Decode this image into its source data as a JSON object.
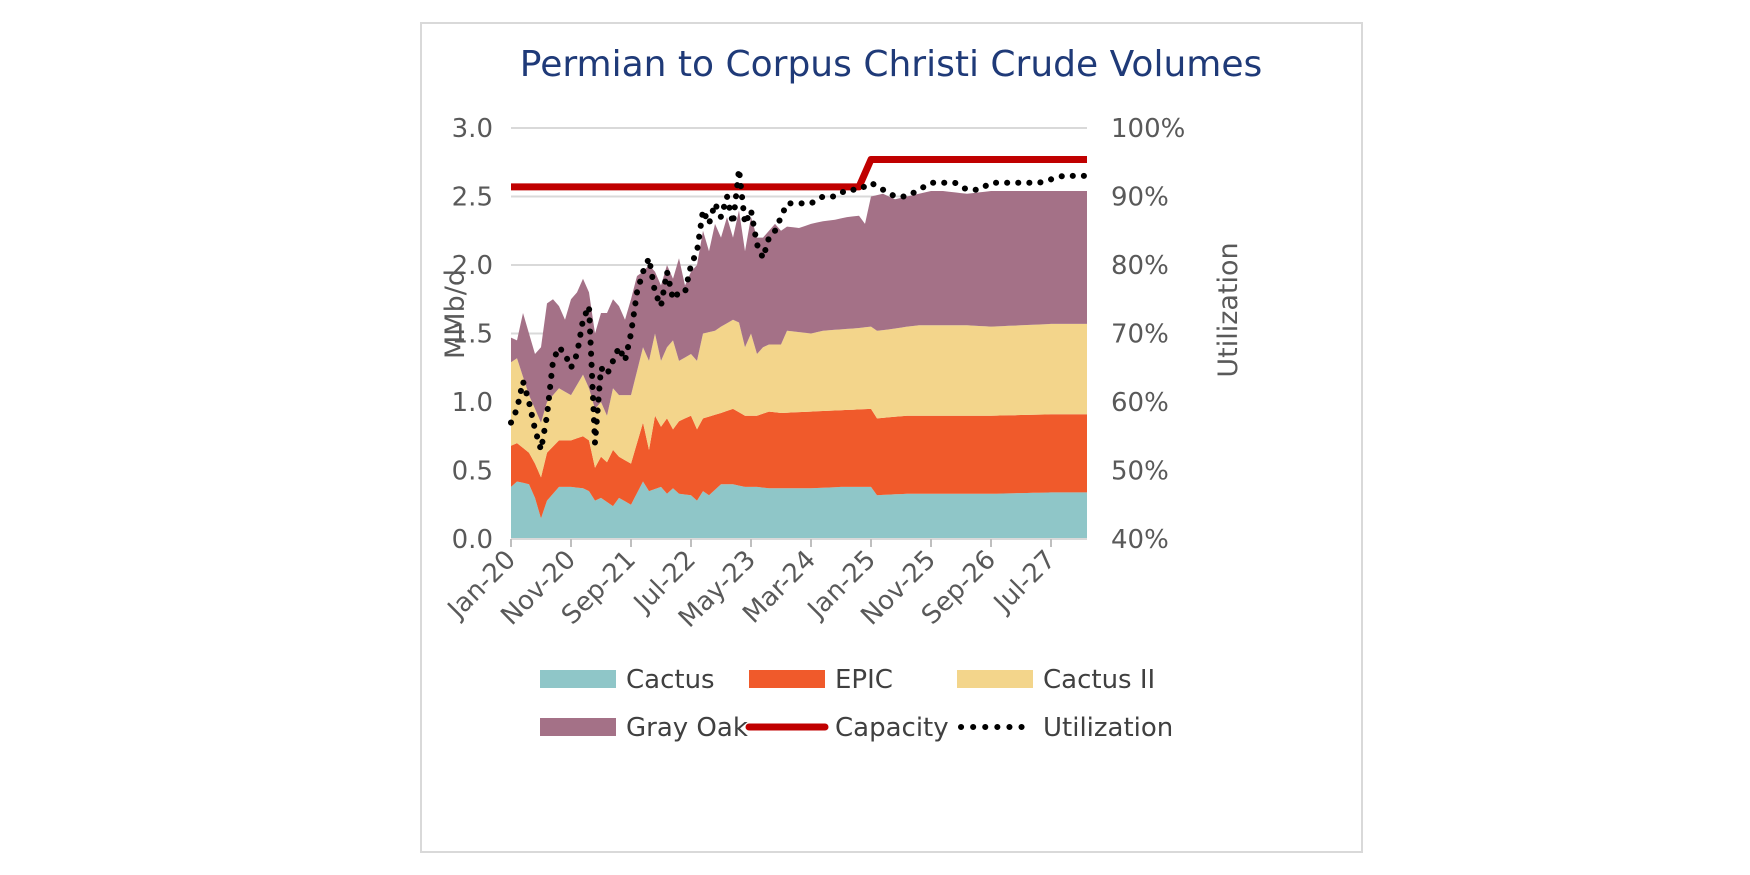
{
  "chart_data": {
    "type": "area",
    "title": "Permian to Corpus Christi Crude Volumes",
    "ylabel": "MMb/d",
    "y2label": "Utilization",
    "ylim": [
      0,
      3.0
    ],
    "y2lim": [
      40,
      100
    ],
    "yticks": [
      "0.0",
      "0.5",
      "1.0",
      "1.5",
      "2.0",
      "2.5",
      "3.0"
    ],
    "y2ticks": [
      "40%",
      "50%",
      "60%",
      "70%",
      "80%",
      "90%",
      "100%"
    ],
    "xticks": [
      "Jan-20",
      "Nov-20",
      "Sep-21",
      "Jul-22",
      "May-23",
      "Mar-24",
      "Jan-25",
      "Nov-25",
      "Sep-26",
      "Jul-27"
    ],
    "x_months": 97,
    "colors": {
      "Cactus": "#8fc6c8",
      "EPIC": "#f05a2b",
      "Cactus II": "#f3d58b",
      "Gray Oak": "#a47187",
      "Capacity": "#c00000",
      "Utilization": "#000000",
      "grid": "#d9d9d9"
    },
    "series": [
      {
        "name": "Cactus",
        "type": "area",
        "points": [
          [
            0,
            0.38
          ],
          [
            1,
            0.42
          ],
          [
            3,
            0.4
          ],
          [
            4,
            0.3
          ],
          [
            5,
            0.15
          ],
          [
            6,
            0.28
          ],
          [
            8,
            0.38
          ],
          [
            10,
            0.38
          ],
          [
            12,
            0.37
          ],
          [
            13,
            0.35
          ],
          [
            14,
            0.28
          ],
          [
            15,
            0.3
          ],
          [
            16,
            0.27
          ],
          [
            17,
            0.24
          ],
          [
            18,
            0.3
          ],
          [
            20,
            0.25
          ],
          [
            22,
            0.42
          ],
          [
            23,
            0.35
          ],
          [
            25,
            0.38
          ],
          [
            26,
            0.33
          ],
          [
            27,
            0.37
          ],
          [
            28,
            0.33
          ],
          [
            30,
            0.32
          ],
          [
            31,
            0.28
          ],
          [
            32,
            0.35
          ],
          [
            33,
            0.32
          ],
          [
            35,
            0.4
          ],
          [
            37,
            0.4
          ],
          [
            39,
            0.38
          ],
          [
            41,
            0.38
          ],
          [
            43,
            0.37
          ],
          [
            45,
            0.37
          ],
          [
            50,
            0.37
          ],
          [
            55,
            0.38
          ],
          [
            60,
            0.38
          ],
          [
            61,
            0.32
          ],
          [
            66,
            0.33
          ],
          [
            72,
            0.33
          ],
          [
            80,
            0.33
          ],
          [
            90,
            0.34
          ],
          [
            96,
            0.34
          ]
        ]
      },
      {
        "name": "EPIC",
        "type": "area",
        "points": [
          [
            0,
            0.68
          ],
          [
            1,
            0.7
          ],
          [
            3,
            0.63
          ],
          [
            4,
            0.55
          ],
          [
            5,
            0.45
          ],
          [
            6,
            0.63
          ],
          [
            8,
            0.72
          ],
          [
            10,
            0.72
          ],
          [
            12,
            0.75
          ],
          [
            13,
            0.72
          ],
          [
            14,
            0.52
          ],
          [
            15,
            0.6
          ],
          [
            16,
            0.56
          ],
          [
            17,
            0.65
          ],
          [
            18,
            0.6
          ],
          [
            20,
            0.55
          ],
          [
            22,
            0.85
          ],
          [
            23,
            0.65
          ],
          [
            24,
            0.9
          ],
          [
            25,
            0.82
          ],
          [
            26,
            0.88
          ],
          [
            27,
            0.8
          ],
          [
            28,
            0.86
          ],
          [
            30,
            0.9
          ],
          [
            31,
            0.8
          ],
          [
            32,
            0.88
          ],
          [
            35,
            0.92
          ],
          [
            37,
            0.95
          ],
          [
            39,
            0.9
          ],
          [
            41,
            0.9
          ],
          [
            43,
            0.93
          ],
          [
            45,
            0.92
          ],
          [
            50,
            0.93
          ],
          [
            55,
            0.94
          ],
          [
            60,
            0.95
          ],
          [
            61,
            0.88
          ],
          [
            66,
            0.9
          ],
          [
            72,
            0.9
          ],
          [
            80,
            0.9
          ],
          [
            90,
            0.91
          ],
          [
            96,
            0.91
          ]
        ]
      },
      {
        "name": "Cactus II",
        "type": "area",
        "points": [
          [
            0,
            1.29
          ],
          [
            1,
            1.32
          ],
          [
            3,
            1.05
          ],
          [
            4,
            0.95
          ],
          [
            5,
            0.85
          ],
          [
            6,
            1.0
          ],
          [
            8,
            1.1
          ],
          [
            10,
            1.05
          ],
          [
            12,
            1.2
          ],
          [
            13,
            1.1
          ],
          [
            14,
            0.95
          ],
          [
            15,
            1.0
          ],
          [
            16,
            0.9
          ],
          [
            17,
            1.1
          ],
          [
            18,
            1.05
          ],
          [
            20,
            1.05
          ],
          [
            22,
            1.4
          ],
          [
            23,
            1.3
          ],
          [
            24,
            1.5
          ],
          [
            25,
            1.3
          ],
          [
            26,
            1.4
          ],
          [
            27,
            1.45
          ],
          [
            28,
            1.3
          ],
          [
            30,
            1.35
          ],
          [
            31,
            1.3
          ],
          [
            32,
            1.5
          ],
          [
            34,
            1.52
          ],
          [
            35,
            1.55
          ],
          [
            37,
            1.6
          ],
          [
            38,
            1.58
          ],
          [
            39,
            1.4
          ],
          [
            40,
            1.5
          ],
          [
            41,
            1.35
          ],
          [
            42,
            1.4
          ],
          [
            43,
            1.42
          ],
          [
            45,
            1.42
          ],
          [
            46,
            1.52
          ],
          [
            48,
            1.51
          ],
          [
            50,
            1.5
          ],
          [
            52,
            1.52
          ],
          [
            55,
            1.53
          ],
          [
            58,
            1.54
          ],
          [
            60,
            1.55
          ],
          [
            61,
            1.52
          ],
          [
            63,
            1.53
          ],
          [
            66,
            1.55
          ],
          [
            68,
            1.56
          ],
          [
            72,
            1.56
          ],
          [
            76,
            1.56
          ],
          [
            80,
            1.55
          ],
          [
            85,
            1.56
          ],
          [
            90,
            1.57
          ],
          [
            96,
            1.57
          ]
        ]
      },
      {
        "name": "Gray Oak",
        "type": "area",
        "points": [
          [
            0,
            1.47
          ],
          [
            1,
            1.45
          ],
          [
            2,
            1.65
          ],
          [
            3,
            1.5
          ],
          [
            4,
            1.35
          ],
          [
            5,
            1.4
          ],
          [
            6,
            1.72
          ],
          [
            7,
            1.75
          ],
          [
            8,
            1.7
          ],
          [
            9,
            1.6
          ],
          [
            10,
            1.75
          ],
          [
            11,
            1.8
          ],
          [
            12,
            1.9
          ],
          [
            13,
            1.8
          ],
          [
            14,
            1.5
          ],
          [
            15,
            1.65
          ],
          [
            16,
            1.65
          ],
          [
            17,
            1.75
          ],
          [
            18,
            1.7
          ],
          [
            19,
            1.6
          ],
          [
            20,
            1.75
          ],
          [
            21,
            1.92
          ],
          [
            22,
            1.95
          ],
          [
            23,
            2.0
          ],
          [
            24,
            1.95
          ],
          [
            25,
            1.85
          ],
          [
            26,
            2.0
          ],
          [
            27,
            1.9
          ],
          [
            28,
            2.05
          ],
          [
            29,
            1.85
          ],
          [
            30,
            1.95
          ],
          [
            31,
            2.0
          ],
          [
            32,
            2.25
          ],
          [
            33,
            2.1
          ],
          [
            34,
            2.3
          ],
          [
            35,
            2.2
          ],
          [
            36,
            2.35
          ],
          [
            37,
            2.2
          ],
          [
            38,
            2.4
          ],
          [
            39,
            2.1
          ],
          [
            40,
            2.35
          ],
          [
            41,
            2.2
          ],
          [
            42,
            2.2
          ],
          [
            43,
            2.25
          ],
          [
            44,
            2.3
          ],
          [
            45,
            2.25
          ],
          [
            46,
            2.28
          ],
          [
            48,
            2.27
          ],
          [
            50,
            2.3
          ],
          [
            52,
            2.32
          ],
          [
            54,
            2.33
          ],
          [
            56,
            2.35
          ],
          [
            58,
            2.36
          ],
          [
            59,
            2.3
          ],
          [
            60,
            2.5
          ],
          [
            62,
            2.52
          ],
          [
            64,
            2.48
          ],
          [
            66,
            2.5
          ],
          [
            68,
            2.52
          ],
          [
            70,
            2.54
          ],
          [
            72,
            2.54
          ],
          [
            74,
            2.53
          ],
          [
            76,
            2.52
          ],
          [
            78,
            2.53
          ],
          [
            80,
            2.54
          ],
          [
            85,
            2.54
          ],
          [
            90,
            2.54
          ],
          [
            96,
            2.54
          ]
        ]
      },
      {
        "name": "Capacity",
        "type": "line",
        "points": [
          [
            0,
            2.57
          ],
          [
            58,
            2.57
          ],
          [
            60,
            2.77
          ],
          [
            96,
            2.77
          ]
        ]
      },
      {
        "name": "Utilization",
        "type": "dotted-line",
        "axis": "right",
        "points": [
          [
            0,
            57
          ],
          [
            1,
            59
          ],
          [
            2,
            63
          ],
          [
            3,
            60
          ],
          [
            4,
            56
          ],
          [
            5,
            53
          ],
          [
            6,
            58
          ],
          [
            7,
            66
          ],
          [
            8,
            68
          ],
          [
            9,
            67
          ],
          [
            10,
            65
          ],
          [
            11,
            67
          ],
          [
            12,
            72
          ],
          [
            13,
            74
          ],
          [
            14,
            54
          ],
          [
            15,
            65
          ],
          [
            16,
            64
          ],
          [
            17,
            66
          ],
          [
            18,
            68
          ],
          [
            19,
            66
          ],
          [
            20,
            70
          ],
          [
            21,
            76
          ],
          [
            22,
            79
          ],
          [
            23,
            81
          ],
          [
            24,
            76
          ],
          [
            25,
            74
          ],
          [
            26,
            79
          ],
          [
            27,
            75
          ],
          [
            28,
            76
          ],
          [
            29,
            76
          ],
          [
            30,
            80
          ],
          [
            31,
            82
          ],
          [
            32,
            88
          ],
          [
            33,
            86
          ],
          [
            34,
            89
          ],
          [
            35,
            87
          ],
          [
            36,
            90
          ],
          [
            37,
            86
          ],
          [
            38,
            94
          ],
          [
            39,
            86
          ],
          [
            40,
            88
          ],
          [
            41,
            83
          ],
          [
            42,
            81
          ],
          [
            43,
            84
          ],
          [
            44,
            85
          ],
          [
            45,
            87
          ],
          [
            46,
            89
          ],
          [
            48,
            89
          ],
          [
            50,
            89
          ],
          [
            52,
            90
          ],
          [
            54,
            90
          ],
          [
            56,
            91
          ],
          [
            58,
            91
          ],
          [
            60,
            92
          ],
          [
            62,
            91
          ],
          [
            64,
            90
          ],
          [
            66,
            90
          ],
          [
            68,
            91
          ],
          [
            70,
            92
          ],
          [
            72,
            92
          ],
          [
            74,
            92
          ],
          [
            76,
            91
          ],
          [
            78,
            91
          ],
          [
            80,
            92
          ],
          [
            84,
            92
          ],
          [
            88,
            92
          ],
          [
            92,
            93
          ],
          [
            96,
            93
          ]
        ]
      }
    ],
    "legend": {
      "position": "bottom",
      "rows": [
        [
          "Cactus",
          "EPIC",
          "Cactus II"
        ],
        [
          "Gray Oak",
          "Capacity",
          "Utilization"
        ]
      ]
    }
  }
}
